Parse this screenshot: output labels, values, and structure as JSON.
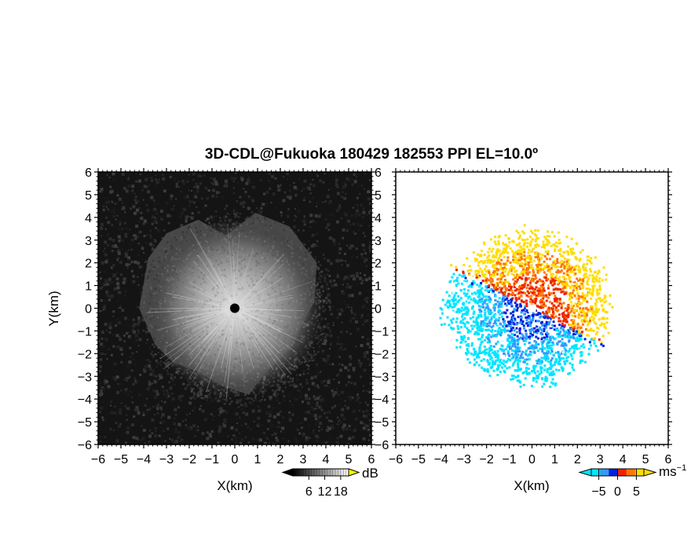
{
  "title": "3D-CDL@Fukuoka 180429 182553 PPI EL=10.0º",
  "chart_data": [
    {
      "type": "heatmap",
      "panel": "reflectivity",
      "xlabel": "X(km)",
      "ylabel": "Y(km)",
      "xlim": [
        -6,
        6
      ],
      "ylim": [
        -6,
        6
      ],
      "x_ticks": [
        "−6",
        "−5",
        "−4",
        "−3",
        "−2",
        "−1",
        "0",
        "1",
        "2",
        "3",
        "4",
        "5",
        "6"
      ],
      "y_ticks": [
        "−6",
        "−5",
        "−4",
        "−3",
        "−2",
        "−1",
        "0",
        "1",
        "2",
        "3",
        "4",
        "5",
        "6"
      ],
      "colorbar": {
        "label": "dB",
        "ticks": [
          "6",
          "12",
          "18"
        ],
        "range": [
          0,
          21
        ],
        "colormap": "grayscale"
      },
      "marker": {
        "x": 0,
        "y": 0,
        "color": "#000000"
      }
    },
    {
      "type": "heatmap",
      "panel": "doppler-velocity",
      "xlabel": "X(km)",
      "xlim": [
        -6,
        6
      ],
      "ylim": [
        -6,
        6
      ],
      "x_ticks": [
        "−6",
        "−5",
        "−4",
        "−3",
        "−2",
        "−1",
        "0",
        "1",
        "2",
        "3",
        "4",
        "5",
        "6"
      ],
      "y_ticks": [
        "−6",
        "−5",
        "−4",
        "−3",
        "−2",
        "−1",
        "0",
        "1",
        "2",
        "3",
        "4",
        "5",
        "6"
      ],
      "colorbar": {
        "label": "ms",
        "label_sup": "−1",
        "ticks": [
          "−5",
          "0",
          "5"
        ],
        "range": [
          -7,
          7
        ],
        "colors": [
          "#00e5ff",
          "#3399ff",
          "#0022dd",
          "#ee2200",
          "#ff7700",
          "#ffdd00"
        ]
      },
      "marker": {
        "x": 0,
        "y": 0,
        "color": "#ffffff"
      }
    }
  ]
}
